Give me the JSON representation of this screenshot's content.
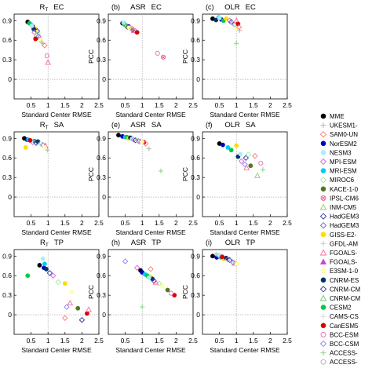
{
  "figure": {
    "xlabel": "Standard Center RMSE",
    "ylabel": "PCC",
    "xticks": [
      "0.5",
      "1",
      "1.5",
      "2",
      "2.5"
    ],
    "yticks": [
      "0.9",
      "0.6",
      "0.3",
      "0"
    ]
  },
  "legend": {
    "entries": [
      {
        "name": "MME",
        "color": "#000000",
        "marker": "filled-circle"
      },
      {
        "name": "UKESM1-",
        "color": "#bbbbbb",
        "marker": "plus"
      },
      {
        "name": "SAM0-UN",
        "color": "#ff7777",
        "marker": "open-diamond"
      },
      {
        "name": "NorESM2",
        "color": "#0000c8",
        "marker": "filled-circle"
      },
      {
        "name": "NESM3",
        "color": "#aaeeff",
        "marker": "filled-circle"
      },
      {
        "name": "MPI-ESM",
        "color": "#dd66dd",
        "marker": "open-diamond"
      },
      {
        "name": "MRI-ESM",
        "color": "#00ccff",
        "marker": "filled-circle"
      },
      {
        "name": "MIROC6",
        "color": "#99ee99",
        "marker": "open-diamond"
      },
      {
        "name": "KACE-1-0",
        "color": "#557722",
        "marker": "filled-circle"
      },
      {
        "name": "IPSL-CM6",
        "color": "#ee5577",
        "marker": "x-circle"
      },
      {
        "name": "INM-CM5",
        "color": "#99cc66",
        "marker": "open-triangle"
      },
      {
        "name": "HadGEM3",
        "color": "#3333aa",
        "marker": "open-diamond"
      },
      {
        "name": "HadGEM3",
        "color": "#6666cc",
        "marker": "open-diamond"
      },
      {
        "name": "GISS-E2-",
        "color": "#ffdd00",
        "marker": "filled-circle"
      },
      {
        "name": "GFDL-AM",
        "color": "#cccccc",
        "marker": "plus"
      },
      {
        "name": "FGOALS-",
        "color": "#ff66aa",
        "marker": "open-triangle"
      },
      {
        "name": "FGOALS-",
        "color": "#cc44cc",
        "marker": "filled-triangle"
      },
      {
        "name": "E3SM-1-0",
        "color": "#ffffaa",
        "marker": "filled-circle"
      },
      {
        "name": "CNRM-ES",
        "color": "#003366",
        "marker": "filled-circle"
      },
      {
        "name": "CNRM-CM",
        "color": "#333399",
        "marker": "open-diamond"
      },
      {
        "name": "CNRM-CM",
        "color": "#66cc66",
        "marker": "open-triangle"
      },
      {
        "name": "CESM2",
        "color": "#00cc44",
        "marker": "filled-circle"
      },
      {
        "name": "CAMS-CS",
        "color": "#dddddd",
        "marker": "plus"
      },
      {
        "name": "CanESM5",
        "color": "#dd0000",
        "marker": "filled-circle"
      },
      {
        "name": "BCC-ESM",
        "color": "#ee66bb",
        "marker": "open-circle"
      },
      {
        "name": "BCC-CSM",
        "color": "#8888ee",
        "marker": "open-diamond"
      },
      {
        "name": "ACCESS-",
        "color": "#88dd88",
        "marker": "plus"
      },
      {
        "name": "ACCESS-",
        "color": "#aaaaaa",
        "marker": "open-circle"
      }
    ]
  },
  "chart_data": [
    {
      "type": "scatter",
      "panel_label": "",
      "title": "R",
      "title_sub": "T",
      "title_suffix": "EC",
      "xlim": [
        0,
        2.5
      ],
      "ylim": [
        -0.3,
        1.0
      ],
      "points": [
        {
          "series": "MME",
          "x": 0.4,
          "y": 0.88
        },
        {
          "series": "NorESM2",
          "x": 0.55,
          "y": 0.81
        },
        {
          "series": "MRI-ESM",
          "x": 0.5,
          "y": 0.84
        },
        {
          "series": "CESM2",
          "x": 0.45,
          "y": 0.86
        },
        {
          "series": "GISS-E2-",
          "x": 0.62,
          "y": 0.78
        },
        {
          "series": "CNRM-ES",
          "x": 0.58,
          "y": 0.77
        },
        {
          "series": "NESM3",
          "x": 0.52,
          "y": 0.82
        },
        {
          "series": "MPI-ESM",
          "x": 0.6,
          "y": 0.72
        },
        {
          "series": "HadGEM3",
          "x": 0.68,
          "y": 0.74
        },
        {
          "series": "MIROC6",
          "x": 0.7,
          "y": 0.7
        },
        {
          "series": "INM-CM5",
          "x": 0.66,
          "y": 0.68
        },
        {
          "series": "BCC-CSM",
          "x": 0.72,
          "y": 0.66
        },
        {
          "series": "FGOALS-",
          "x": 0.75,
          "y": 0.64
        },
        {
          "series": "CanESM5",
          "x": 0.63,
          "y": 0.62
        },
        {
          "series": "E3SM-1-0",
          "x": 0.78,
          "y": 0.6
        },
        {
          "series": "UKESM1-",
          "x": 0.8,
          "y": 0.57
        },
        {
          "series": "ACCESS-",
          "x": 0.85,
          "y": 0.55
        },
        {
          "series": "SAM0-UN",
          "x": 0.9,
          "y": 0.52
        },
        {
          "series": "BCC-ESM",
          "x": 0.97,
          "y": 0.36
        },
        {
          "series": "FGOALS-",
          "x": 1.0,
          "y": 0.26
        }
      ]
    },
    {
      "type": "scatter",
      "panel_label": "(b)",
      "title": "ASR",
      "title_suffix": "EC",
      "xlim": [
        0,
        2.5
      ],
      "ylim": [
        -0.3,
        1.0
      ],
      "points": [
        {
          "series": "MME",
          "x": 0.42,
          "y": 0.86
        },
        {
          "series": "NorESM2",
          "x": 0.6,
          "y": 0.81
        },
        {
          "series": "MRI-ESM",
          "x": 0.48,
          "y": 0.84
        },
        {
          "series": "CESM2",
          "x": 0.52,
          "y": 0.83
        },
        {
          "series": "GISS-E2-",
          "x": 0.55,
          "y": 0.8
        },
        {
          "series": "CNRM-ES",
          "x": 0.72,
          "y": 0.76
        },
        {
          "series": "NESM3",
          "x": 0.45,
          "y": 0.87
        },
        {
          "series": "MPI-ESM",
          "x": 0.65,
          "y": 0.78
        },
        {
          "series": "HadGEM3",
          "x": 0.58,
          "y": 0.8
        },
        {
          "series": "MIROC6",
          "x": 0.68,
          "y": 0.77
        },
        {
          "series": "BCC-CSM",
          "x": 0.8,
          "y": 0.74
        },
        {
          "series": "FGOALS-",
          "x": 0.75,
          "y": 0.75
        },
        {
          "series": "CanESM5",
          "x": 0.85,
          "y": 0.72
        },
        {
          "series": "E3SM-1-0",
          "x": 0.62,
          "y": 0.79
        },
        {
          "series": "UKESM1-",
          "x": 0.5,
          "y": 0.85
        },
        {
          "series": "SAM0-UN",
          "x": 0.7,
          "y": 0.78
        },
        {
          "series": "BCC-ESM",
          "x": 1.45,
          "y": 0.4
        },
        {
          "series": "IPSL-CM6",
          "x": 1.62,
          "y": 0.34
        }
      ]
    },
    {
      "type": "scatter",
      "panel_label": "(c)",
      "title": "OLR",
      "title_suffix": "EC",
      "xlim": [
        0,
        2.5
      ],
      "ylim": [
        -0.3,
        1.0
      ],
      "points": [
        {
          "series": "MME",
          "x": 0.3,
          "y": 0.93
        },
        {
          "series": "NorESM2",
          "x": 0.55,
          "y": 0.92
        },
        {
          "series": "MRI-ESM",
          "x": 0.48,
          "y": 0.95
        },
        {
          "series": "CESM2",
          "x": 0.62,
          "y": 0.9
        },
        {
          "series": "GISS-E2-",
          "x": 0.7,
          "y": 0.93
        },
        {
          "series": "CNRM-ES",
          "x": 0.4,
          "y": 0.91
        },
        {
          "series": "NESM3",
          "x": 0.5,
          "y": 0.94
        },
        {
          "series": "MPI-ESM",
          "x": 0.8,
          "y": 0.9
        },
        {
          "series": "HadGEM3",
          "x": 0.85,
          "y": 0.88
        },
        {
          "series": "MIROC6",
          "x": 0.9,
          "y": 0.86
        },
        {
          "series": "BCC-CSM",
          "x": 0.95,
          "y": 0.84
        },
        {
          "series": "FGOALS-",
          "x": 1.0,
          "y": 0.9
        },
        {
          "series": "CanESM5",
          "x": 1.05,
          "y": 0.85
        },
        {
          "series": "E3SM-1-0",
          "x": 1.0,
          "y": 0.78
        },
        {
          "series": "UKESM1-",
          "x": 1.1,
          "y": 0.75
        },
        {
          "series": "SAM0-UN",
          "x": 1.08,
          "y": 0.8
        },
        {
          "series": "ACCESS-",
          "x": 1.0,
          "y": 0.55
        }
      ]
    },
    {
      "type": "scatter",
      "panel_label": "",
      "title": "R",
      "title_sub": "T",
      "title_suffix": "SA",
      "xlim": [
        0,
        2.5
      ],
      "ylim": [
        -0.3,
        1.0
      ],
      "points": [
        {
          "series": "MME",
          "x": 0.3,
          "y": 0.9
        },
        {
          "series": "NorESM2",
          "x": 0.38,
          "y": 0.88
        },
        {
          "series": "MRI-ESM",
          "x": 0.42,
          "y": 0.88
        },
        {
          "series": "CESM2",
          "x": 0.6,
          "y": 0.86
        },
        {
          "series": "GISS-E2-",
          "x": 0.34,
          "y": 0.76
        },
        {
          "series": "CNRM-ES",
          "x": 0.7,
          "y": 0.85
        },
        {
          "series": "NESM3",
          "x": 0.5,
          "y": 0.86
        },
        {
          "series": "MPI-ESM",
          "x": 0.55,
          "y": 0.84
        },
        {
          "series": "HadGEM3",
          "x": 0.65,
          "y": 0.83
        },
        {
          "series": "MIROC6",
          "x": 0.78,
          "y": 0.82
        },
        {
          "series": "BCC-CSM",
          "x": 0.85,
          "y": 0.8
        },
        {
          "series": "FGOALS-",
          "x": 0.92,
          "y": 0.79
        },
        {
          "series": "CanESM5",
          "x": 0.47,
          "y": 0.87
        },
        {
          "series": "E3SM-1-0",
          "x": 0.9,
          "y": 0.76
        },
        {
          "series": "UKESM1-",
          "x": 0.98,
          "y": 0.72
        }
      ]
    },
    {
      "type": "scatter",
      "panel_label": "(e)",
      "title": "ASR",
      "title_suffix": "SA",
      "xlim": [
        0,
        2.5
      ],
      "ylim": [
        -0.3,
        1.0
      ],
      "points": [
        {
          "series": "MME",
          "x": 0.3,
          "y": 0.95
        },
        {
          "series": "NorESM2",
          "x": 0.42,
          "y": 0.93
        },
        {
          "series": "MRI-ESM",
          "x": 0.5,
          "y": 0.92
        },
        {
          "series": "CESM2",
          "x": 0.55,
          "y": 0.92
        },
        {
          "series": "GISS-E2-",
          "x": 0.6,
          "y": 0.9
        },
        {
          "series": "CNRM-ES",
          "x": 0.65,
          "y": 0.91
        },
        {
          "series": "NESM3",
          "x": 0.7,
          "y": 0.89
        },
        {
          "series": "MPI-ESM",
          "x": 0.75,
          "y": 0.88
        },
        {
          "series": "HadGEM3",
          "x": 0.8,
          "y": 0.87
        },
        {
          "series": "MIROC6",
          "x": 0.85,
          "y": 0.87
        },
        {
          "series": "BCC-CSM",
          "x": 0.9,
          "y": 0.86
        },
        {
          "series": "FGOALS-",
          "x": 0.95,
          "y": 0.85
        },
        {
          "series": "CanESM5",
          "x": 1.05,
          "y": 0.84
        },
        {
          "series": "E3SM-1-0",
          "x": 1.0,
          "y": 0.84
        },
        {
          "series": "UKESM1-",
          "x": 1.2,
          "y": 0.74
        },
        {
          "series": "SAM0-UN",
          "x": 1.1,
          "y": 0.82
        },
        {
          "series": "ACCESS-",
          "x": 1.55,
          "y": 0.4
        }
      ]
    },
    {
      "type": "scatter",
      "panel_label": "(f)",
      "title": "OLR",
      "title_suffix": "SA",
      "xlim": [
        0,
        2.5
      ],
      "ylim": [
        -0.3,
        1.0
      ],
      "points": [
        {
          "series": "MME",
          "x": 0.5,
          "y": 0.82
        },
        {
          "series": "NorESM2",
          "x": 0.6,
          "y": 0.8
        },
        {
          "series": "MRI-ESM",
          "x": 0.75,
          "y": 0.76
        },
        {
          "series": "CESM2",
          "x": 0.85,
          "y": 0.72
        },
        {
          "series": "GISS-E2-",
          "x": 1.0,
          "y": 0.79
        },
        {
          "series": "CNRM-ES",
          "x": 1.05,
          "y": 0.62
        },
        {
          "series": "NESM3",
          "x": 1.12,
          "y": 0.66
        },
        {
          "series": "MPI-ESM",
          "x": 1.15,
          "y": 0.55
        },
        {
          "series": "HadGEM3",
          "x": 1.28,
          "y": 0.6
        },
        {
          "series": "MIROC6",
          "x": 1.35,
          "y": 0.65
        },
        {
          "series": "BCC-CSM",
          "x": 1.25,
          "y": 0.5
        },
        {
          "series": "FGOALS-",
          "x": 1.3,
          "y": 0.45
        },
        {
          "series": "KACE-1-0",
          "x": 1.42,
          "y": 0.48
        },
        {
          "series": "SAM0-UN",
          "x": 1.55,
          "y": 0.63
        },
        {
          "series": "BCC-ESM",
          "x": 1.72,
          "y": 0.52
        },
        {
          "series": "ACCESS-",
          "x": 1.78,
          "y": 0.42
        },
        {
          "series": "INM-CM5",
          "x": 1.62,
          "y": 0.33
        }
      ]
    },
    {
      "type": "scatter",
      "panel_label": "",
      "title": "R",
      "title_sub": "T",
      "title_suffix": "TP",
      "xlim": [
        0,
        2.5
      ],
      "ylim": [
        -0.3,
        1.0
      ],
      "points": [
        {
          "series": "MME",
          "x": 0.75,
          "y": 0.76
        },
        {
          "series": "NorESM2",
          "x": 0.88,
          "y": 0.72
        },
        {
          "series": "MRI-ESM",
          "x": 0.9,
          "y": 0.78
        },
        {
          "series": "CESM2",
          "x": 0.4,
          "y": 0.6
        },
        {
          "series": "GISS-E2-",
          "x": 1.5,
          "y": 0.48
        },
        {
          "series": "CNRM-ES",
          "x": 0.95,
          "y": 0.7
        },
        {
          "series": "NESM3",
          "x": 0.85,
          "y": 0.86
        },
        {
          "series": "MPI-ESM",
          "x": 1.15,
          "y": 0.6
        },
        {
          "series": "HadGEM3",
          "x": 1.05,
          "y": 0.64
        },
        {
          "series": "MIROC6",
          "x": 1.3,
          "y": 0.5
        },
        {
          "series": "BCC-CSM",
          "x": 1.55,
          "y": 0.12
        },
        {
          "series": "FGOALS-",
          "x": 1.65,
          "y": 0.18
        },
        {
          "series": "CanESM5",
          "x": 2.15,
          "y": 0.02
        },
        {
          "series": "KACE-1-0",
          "x": 1.88,
          "y": 0.1
        },
        {
          "series": "E3SM-1-0",
          "x": 1.7,
          "y": 0.35
        },
        {
          "series": "CNRM-CM",
          "x": 2.0,
          "y": -0.08
        },
        {
          "series": "SAM0-UN",
          "x": 1.5,
          "y": -0.05
        },
        {
          "series": "FGOALS-",
          "x": 2.2,
          "y": 0.08
        }
      ]
    },
    {
      "type": "scatter",
      "panel_label": "(h)",
      "title": "ASR",
      "title_suffix": "TP",
      "xlim": [
        0,
        2.5
      ],
      "ylim": [
        -0.3,
        1.0
      ],
      "points": [
        {
          "series": "MME",
          "x": 0.95,
          "y": 0.68
        },
        {
          "series": "NorESM2",
          "x": 1.0,
          "y": 0.65
        },
        {
          "series": "MRI-ESM",
          "x": 1.08,
          "y": 0.62
        },
        {
          "series": "CESM2",
          "x": 1.15,
          "y": 0.6
        },
        {
          "series": "GISS-E2-",
          "x": 1.25,
          "y": 0.58
        },
        {
          "series": "CNRM-ES",
          "x": 1.3,
          "y": 0.55
        },
        {
          "series": "NESM3",
          "x": 1.2,
          "y": 0.57
        },
        {
          "series": "MPI-ESM",
          "x": 0.85,
          "y": 0.72
        },
        {
          "series": "HadGEM3",
          "x": 1.35,
          "y": 0.52
        },
        {
          "series": "MIROC6",
          "x": 1.5,
          "y": 0.48
        },
        {
          "series": "BCC-CSM",
          "x": 0.5,
          "y": 0.82
        },
        {
          "series": "FGOALS-",
          "x": 1.4,
          "y": 0.5
        },
        {
          "series": "CanESM5",
          "x": 1.95,
          "y": 0.3
        },
        {
          "series": "E3SM-1-0",
          "x": 1.6,
          "y": 0.44
        },
        {
          "series": "SAM0-UN",
          "x": 1.25,
          "y": 0.7
        },
        {
          "series": "ACCESS-",
          "x": 1.0,
          "y": 0.12
        },
        {
          "series": "KACE-1-0",
          "x": 1.75,
          "y": 0.38
        },
        {
          "series": "BCC-ESM",
          "x": 1.85,
          "y": 0.33
        }
      ]
    },
    {
      "type": "scatter",
      "panel_label": "(i)",
      "title": "OLR",
      "title_suffix": "TP",
      "xlim": [
        0,
        2.5
      ],
      "ylim": [
        -0.3,
        1.0
      ],
      "points": [
        {
          "series": "MME",
          "x": 0.3,
          "y": 0.9
        },
        {
          "series": "NorESM2",
          "x": 0.42,
          "y": 0.88
        },
        {
          "series": "MRI-ESM",
          "x": 0.5,
          "y": 0.9
        },
        {
          "series": "CESM2",
          "x": 0.55,
          "y": 0.88
        },
        {
          "series": "GISS-E2-",
          "x": 0.62,
          "y": 0.86
        },
        {
          "series": "CNRM-ES",
          "x": 0.7,
          "y": 0.87
        },
        {
          "series": "NESM3",
          "x": 0.48,
          "y": 0.92
        },
        {
          "series": "MPI-ESM",
          "x": 0.75,
          "y": 0.85
        },
        {
          "series": "HadGEM3",
          "x": 0.8,
          "y": 0.84
        },
        {
          "series": "MIROC6",
          "x": 0.85,
          "y": 0.83
        },
        {
          "series": "BCC-CSM",
          "x": 0.9,
          "y": 0.8
        },
        {
          "series": "FGOALS-",
          "x": 0.95,
          "y": 0.79
        },
        {
          "series": "CanESM5",
          "x": 0.58,
          "y": 0.89
        },
        {
          "series": "E3SM-1-0",
          "x": 1.02,
          "y": 0.78
        },
        {
          "series": "UKESM1-",
          "x": 0.4,
          "y": 0.93
        }
      ]
    }
  ]
}
